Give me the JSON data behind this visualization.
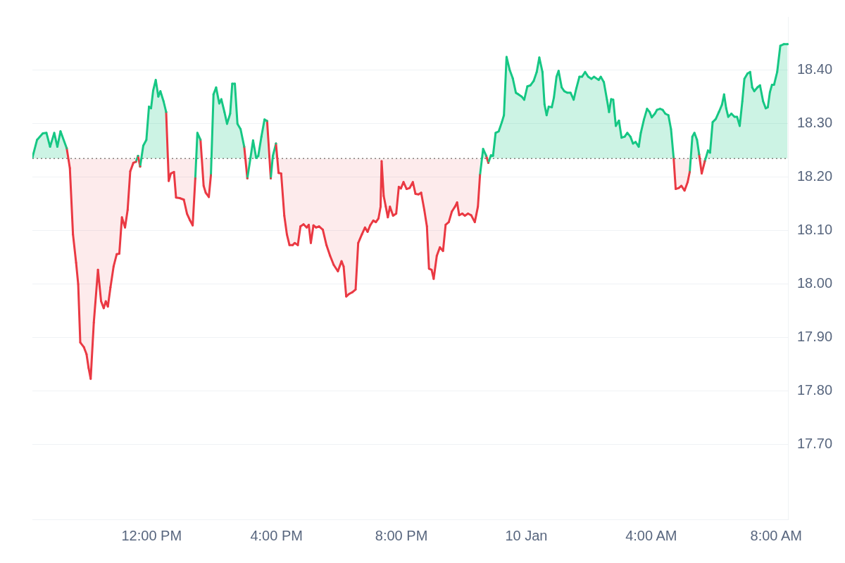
{
  "chart_data": {
    "type": "area",
    "xlim": [
      "--01-09T08:11",
      "--01-10T08:24"
    ],
    "ylim": [
      17.56,
      18.5
    ],
    "xticks": [
      {
        "value": "--01-09T12:00",
        "label": "12:00 PM"
      },
      {
        "value": "--01-09T16:00",
        "label": "4:00 PM"
      },
      {
        "value": "--01-09T20:00",
        "label": "8:00 PM"
      },
      {
        "value": "--01-10T00:00",
        "label": "10 Jan"
      },
      {
        "value": "--01-10T04:00",
        "label": "4:00 AM"
      },
      {
        "value": "--01-10T08:00",
        "label": "8:00 AM"
      }
    ],
    "yticks": [
      {
        "value": 17.7,
        "label": "17.70"
      },
      {
        "value": 17.8,
        "label": "17.80"
      },
      {
        "value": 17.9,
        "label": "17.90"
      },
      {
        "value": 18.0,
        "label": "18.00"
      },
      {
        "value": 18.1,
        "label": "18.10"
      },
      {
        "value": 18.2,
        "label": "18.20"
      },
      {
        "value": 18.3,
        "label": "18.30"
      },
      {
        "value": 18.4,
        "label": "18.40"
      }
    ],
    "grid": "y",
    "legend": false,
    "marker": "none",
    "line_style": "solid",
    "ref_lines": [
      {
        "axis": "y",
        "value": 18.235,
        "line_style": "dotted",
        "color": "#8a7f7f"
      }
    ],
    "series": [
      {
        "color": "#16c784",
        "x": [
          "--01-09T08:11",
          "--01-09T08:20",
          "--01-09T08:31",
          "--01-09T08:38",
          "--01-09T08:45",
          "--01-09T08:53",
          "--01-09T08:59",
          "--01-09T09:05",
          "--01-09T09:17",
          "--01-09T09:23",
          "--01-09T09:29",
          "--01-09T09:35",
          "--01-09T09:39",
          "--01-09T09:43",
          "--01-09T09:50",
          "--01-09T09:55",
          "--01-09T09:59",
          "--01-09T10:03",
          "--01-09T10:09",
          "--01-09T10:17",
          "--01-09T10:23",
          "--01-09T10:28",
          "--01-09T10:32",
          "--01-09T10:36",
          "--01-09T10:41",
          "--01-09T10:47",
          "--01-09T10:53",
          "--01-09T10:58",
          "--01-09T11:03",
          "--01-09T11:09",
          "--01-09T11:14",
          "--01-09T11:19",
          "--01-09T11:25",
          "--01-09T11:30",
          "--01-09T11:34",
          "--01-09T11:38",
          "--01-09T11:44",
          "--01-09T11:50",
          "--01-09T11:55",
          "--01-09T11:59",
          "--01-09T12:03",
          "--01-09T12:08",
          "--01-09T12:13",
          "--01-09T12:17",
          "--01-09T12:23",
          "--01-09T12:28",
          "--01-09T12:33",
          "--01-09T12:37",
          "--01-09T12:43",
          "--01-09T12:47",
          "--01-09T12:54",
          "--01-09T13:02",
          "--01-09T13:08",
          "--01-09T13:14",
          "--01-09T13:19",
          "--01-09T13:24",
          "--01-09T13:28",
          "--01-09T13:34",
          "--01-09T13:40",
          "--01-09T13:44",
          "--01-09T13:50",
          "--01-09T13:54",
          "--01-09T13:59",
          "--01-09T14:04",
          "--01-09T14:10",
          "--01-09T14:14",
          "--01-09T14:20",
          "--01-09T14:25",
          "--01-09T14:31",
          "--01-09T14:35",
          "--01-09T14:40",
          "--01-09T14:45",
          "--01-09T14:51",
          "--01-09T14:58",
          "--01-09T15:04",
          "--01-09T15:10",
          "--01-09T15:15",
          "--01-09T15:21",
          "--01-09T15:25",
          "--01-09T15:31",
          "--01-09T15:37",
          "--01-09T15:42",
          "--01-09T15:49",
          "--01-09T15:53",
          "--01-09T15:59",
          "--01-09T16:04",
          "--01-09T16:09",
          "--01-09T16:15",
          "--01-09T16:20",
          "--01-09T16:25",
          "--01-09T16:31",
          "--01-09T16:35",
          "--01-09T16:41",
          "--01-09T16:46",
          "--01-09T16:52",
          "--01-09T16:58",
          "--01-09T17:02",
          "--01-09T17:06",
          "--01-09T17:11",
          "--01-09T17:16",
          "--01-09T17:22",
          "--01-09T17:29",
          "--01-09T17:36",
          "--01-09T17:43",
          "--01-09T17:50",
          "--01-09T17:58",
          "--01-09T18:05",
          "--01-09T18:09",
          "--01-09T18:14",
          "--01-09T18:20",
          "--01-09T18:26",
          "--01-09T18:32",
          "--01-09T18:37",
          "--01-09T18:44",
          "--01-09T18:50",
          "--01-09T18:55",
          "--01-09T19:00",
          "--01-09T19:06",
          "--01-09T19:11",
          "--01-09T19:16",
          "--01-09T19:20",
          "--01-09T19:22",
          "--01-09T19:26",
          "--01-09T19:30",
          "--01-09T19:34",
          "--01-09T19:38",
          "--01-09T19:44",
          "--01-09T19:50",
          "--01-09T19:55",
          "--01-09T19:59",
          "--01-09T20:04",
          "--01-09T20:10",
          "--01-09T20:16",
          "--01-09T20:22",
          "--01-09T20:27",
          "--01-09T20:33",
          "--01-09T20:38",
          "--01-09T20:44",
          "--01-09T20:49",
          "--01-09T20:53",
          "--01-09T20:58",
          "--01-09T21:02",
          "--01-09T21:08",
          "--01-09T21:14",
          "--01-09T21:20",
          "--01-09T21:25",
          "--01-09T21:31",
          "--01-09T21:37",
          "--01-09T21:43",
          "--01-09T21:47",
          "--01-09T21:51",
          "--01-09T21:57",
          "--01-09T22:02",
          "--01-09T22:08",
          "--01-09T22:14",
          "--01-09T22:21",
          "--01-09T22:27",
          "--01-09T22:31",
          "--01-09T22:37",
          "--01-09T22:43",
          "--01-09T22:47",
          "--01-09T22:52",
          "--01-09T22:56",
          "--01-09T23:01",
          "--01-09T23:07",
          "--01-09T23:13",
          "--01-09T23:17",
          "--01-09T23:22",
          "--01-09T23:28",
          "--01-09T23:34",
          "--01-09T23:40",
          "--01-09T23:45",
          "--01-09T23:51",
          "--01-09T23:56",
          "--01-10T00:02",
          "--01-10T00:08",
          "--01-10T00:14",
          "--01-10T00:20",
          "--01-10T00:25",
          "--01-10T00:31",
          "--01-10T00:35",
          "--01-10T00:39",
          "--01-10T00:43",
          "--01-10T00:49",
          "--01-10T00:53",
          "--01-10T00:58",
          "--01-10T01:02",
          "--01-10T01:08",
          "--01-10T01:13",
          "--01-10T01:19",
          "--01-10T01:25",
          "--01-10T01:31",
          "--01-10T01:36",
          "--01-10T01:42",
          "--01-10T01:47",
          "--01-10T01:53",
          "--01-10T01:59",
          "--01-10T02:05",
          "--01-10T02:10",
          "--01-10T02:19",
          "--01-10T02:23",
          "--01-10T02:29",
          "--01-10T02:35",
          "--01-10T02:39",
          "--01-10T02:43",
          "--01-10T02:47",
          "--01-10T02:52",
          "--01-10T02:58",
          "--01-10T03:03",
          "--01-10T03:09",
          "--01-10T03:14",
          "--01-10T03:20",
          "--01-10T03:25",
          "--01-10T03:30",
          "--01-10T03:36",
          "--01-10T03:40",
          "--01-10T03:46",
          "--01-10T03:52",
          "--01-10T03:57",
          "--01-10T04:01",
          "--01-10T04:07",
          "--01-10T04:11",
          "--01-10T04:17",
          "--01-10T04:22",
          "--01-10T04:27",
          "--01-10T04:33",
          "--01-10T04:38",
          "--01-10T04:43",
          "--01-10T04:47",
          "--01-10T04:53",
          "--01-10T04:58",
          "--01-10T05:04",
          "--01-10T05:10",
          "--01-10T05:14",
          "--01-10T05:19",
          "--01-10T05:23",
          "--01-10T05:28",
          "--01-10T05:32",
          "--01-10T05:37",
          "--01-10T05:43",
          "--01-10T05:49",
          "--01-10T05:53",
          "--01-10T05:58",
          "--01-10T06:04",
          "--01-10T06:10",
          "--01-10T06:16",
          "--01-10T06:20",
          "--01-10T06:24",
          "--01-10T06:28",
          "--01-10T06:34",
          "--01-10T06:40",
          "--01-10T06:45",
          "--01-10T06:50",
          "--01-10T06:55",
          "--01-10T06:59",
          "--01-10T07:05",
          "--01-10T07:10",
          "--01-10T07:14",
          "--01-10T07:18",
          "--01-10T07:24",
          "--01-10T07:29",
          "--01-10T07:35",
          "--01-10T07:40",
          "--01-10T07:44",
          "--01-10T07:48",
          "--01-10T07:52",
          "--01-10T07:56",
          "--01-10T08:02",
          "--01-10T08:08",
          "--01-10T08:15",
          "--01-10T08:22"
        ],
        "values": [
          18.237,
          18.27,
          18.282,
          18.283,
          18.257,
          18.283,
          18.257,
          18.286,
          18.254,
          18.217,
          18.093,
          18.04,
          18.0,
          17.891,
          17.882,
          17.869,
          17.843,
          17.823,
          17.928,
          18.027,
          17.968,
          17.955,
          17.968,
          17.958,
          17.994,
          18.033,
          18.056,
          18.057,
          18.125,
          18.106,
          18.139,
          18.211,
          18.227,
          18.229,
          18.24,
          18.22,
          18.259,
          18.27,
          18.332,
          18.329,
          18.362,
          18.382,
          18.351,
          18.361,
          18.342,
          18.322,
          18.193,
          18.207,
          18.21,
          18.162,
          18.161,
          18.158,
          18.132,
          18.119,
          18.11,
          18.198,
          18.283,
          18.27,
          18.184,
          18.171,
          18.163,
          18.204,
          18.355,
          18.368,
          18.338,
          18.346,
          18.322,
          18.3,
          18.319,
          18.375,
          18.375,
          18.3,
          18.29,
          18.257,
          18.198,
          18.236,
          18.269,
          18.236,
          18.24,
          18.276,
          18.308,
          18.305,
          18.198,
          18.24,
          18.263,
          18.208,
          18.207,
          18.128,
          18.093,
          18.073,
          18.073,
          18.077,
          18.073,
          18.108,
          18.112,
          18.106,
          18.111,
          18.077,
          18.11,
          18.106,
          18.108,
          18.102,
          18.073,
          18.053,
          18.036,
          18.024,
          18.043,
          18.033,
          17.977,
          17.982,
          17.985,
          17.99,
          18.077,
          18.093,
          18.106,
          18.098,
          18.11,
          18.119,
          18.116,
          18.123,
          18.145,
          18.23,
          18.165,
          18.145,
          18.125,
          18.145,
          18.128,
          18.132,
          18.182,
          18.179,
          18.191,
          18.178,
          18.18,
          18.191,
          18.169,
          18.168,
          18.171,
          18.139,
          18.108,
          18.029,
          18.027,
          18.01,
          18.053,
          18.069,
          18.062,
          18.111,
          18.116,
          18.136,
          18.145,
          18.153,
          18.129,
          18.132,
          18.128,
          18.132,
          18.129,
          18.116,
          18.145,
          18.204,
          18.253,
          18.24,
          18.227,
          18.241,
          18.24,
          18.283,
          18.286,
          18.303,
          18.316,
          18.425,
          18.401,
          18.385,
          18.358,
          18.355,
          18.351,
          18.345,
          18.37,
          18.372,
          18.38,
          18.397,
          18.424,
          18.397,
          18.336,
          18.316,
          18.332,
          18.331,
          18.349,
          18.388,
          18.399,
          18.368,
          18.361,
          18.358,
          18.358,
          18.345,
          18.366,
          18.388,
          18.388,
          18.397,
          18.388,
          18.384,
          18.388,
          18.382,
          18.388,
          18.378,
          18.345,
          18.322,
          18.346,
          18.345,
          18.296,
          18.306,
          18.274,
          18.276,
          18.283,
          18.276,
          18.263,
          18.266,
          18.257,
          18.283,
          18.308,
          18.328,
          18.322,
          18.312,
          18.319,
          18.326,
          18.328,
          18.326,
          18.319,
          18.316,
          18.29,
          18.237,
          18.178,
          18.18,
          18.184,
          18.175,
          18.191,
          18.21,
          18.276,
          18.283,
          18.27,
          18.243,
          18.207,
          18.23,
          18.25,
          18.246,
          18.303,
          18.309,
          18.322,
          18.336,
          18.355,
          18.329,
          18.313,
          18.319,
          18.313,
          18.313,
          18.296,
          18.342,
          18.384,
          18.394,
          18.397,
          18.368,
          18.361,
          18.368,
          18.372,
          18.342,
          18.329,
          18.331,
          18.359,
          18.373,
          18.373,
          18.397,
          18.446,
          18.449,
          18.449
        ],
        "colors": [
          "#16c784",
          "#16c784",
          "#16c784",
          "#16c784",
          "#16c784",
          "#16c784",
          "#16c784",
          "#16c784",
          "#16c784",
          "#ea3943",
          "#ea3943",
          "#ea3943",
          "#ea3943",
          "#ea3943",
          "#ea3943",
          "#ea3943",
          "#ea3943",
          "#ea3943",
          "#ea3943",
          "#ea3943",
          "#ea3943",
          "#ea3943",
          "#ea3943",
          "#ea3943",
          "#ea3943",
          "#ea3943",
          "#ea3943",
          "#ea3943",
          "#ea3943",
          "#ea3943",
          "#ea3943",
          "#ea3943",
          "#ea3943",
          "#ea3943",
          "#16c784",
          "#ea3943",
          "#16c784",
          "#16c784",
          "#16c784",
          "#16c784",
          "#16c784",
          "#16c784",
          "#16c784",
          "#16c784",
          "#16c784",
          "#16c784",
          "#ea3943",
          "#ea3943",
          "#ea3943",
          "#ea3943",
          "#ea3943",
          "#ea3943",
          "#ea3943",
          "#ea3943",
          "#ea3943",
          "#ea3943",
          "#16c784",
          "#16c784",
          "#ea3943",
          "#ea3943",
          "#ea3943",
          "#ea3943",
          "#16c784",
          "#16c784",
          "#16c784",
          "#16c784",
          "#16c784",
          "#16c784",
          "#16c784",
          "#16c784",
          "#16c784",
          "#16c784",
          "#16c784",
          "#16c784",
          "#ea3943",
          "#16c784",
          "#16c784",
          "#16c784",
          "#16c784",
          "#16c784",
          "#16c784",
          "#16c784",
          "#ea3943",
          "#16c784",
          "#16c784",
          "#ea3943",
          "#ea3943",
          "#ea3943",
          "#ea3943",
          "#ea3943",
          "#ea3943",
          "#ea3943",
          "#ea3943",
          "#ea3943",
          "#ea3943",
          "#ea3943",
          "#ea3943",
          "#ea3943",
          "#ea3943",
          "#ea3943",
          "#ea3943",
          "#ea3943",
          "#ea3943",
          "#ea3943",
          "#ea3943",
          "#ea3943",
          "#ea3943",
          "#ea3943",
          "#ea3943",
          "#ea3943",
          "#ea3943",
          "#ea3943",
          "#ea3943",
          "#ea3943",
          "#ea3943",
          "#ea3943",
          "#ea3943",
          "#ea3943",
          "#ea3943",
          "#ea3943",
          "#ea3943",
          "#ea3943",
          "#ea3943",
          "#ea3943",
          "#ea3943",
          "#ea3943",
          "#ea3943",
          "#ea3943",
          "#ea3943",
          "#ea3943",
          "#ea3943",
          "#ea3943",
          "#ea3943",
          "#ea3943",
          "#ea3943",
          "#ea3943",
          "#ea3943",
          "#ea3943",
          "#ea3943",
          "#ea3943",
          "#ea3943",
          "#ea3943",
          "#ea3943",
          "#ea3943",
          "#ea3943",
          "#ea3943",
          "#ea3943",
          "#ea3943",
          "#ea3943",
          "#ea3943",
          "#ea3943",
          "#ea3943",
          "#ea3943",
          "#ea3943",
          "#ea3943",
          "#ea3943",
          "#ea3943",
          "#ea3943",
          "#16c784",
          "#16c784",
          "#ea3943",
          "#16c784",
          "#16c784",
          "#16c784",
          "#16c784",
          "#16c784",
          "#16c784",
          "#16c784",
          "#16c784",
          "#16c784",
          "#16c784",
          "#16c784",
          "#16c784",
          "#16c784",
          "#16c784",
          "#16c784",
          "#16c784",
          "#16c784",
          "#16c784",
          "#16c784",
          "#16c784",
          "#16c784",
          "#16c784",
          "#16c784",
          "#16c784",
          "#16c784",
          "#16c784",
          "#16c784",
          "#16c784",
          "#16c784",
          "#16c784",
          "#16c784",
          "#16c784",
          "#16c784",
          "#16c784",
          "#16c784",
          "#16c784",
          "#16c784",
          "#16c784",
          "#16c784",
          "#16c784",
          "#16c784",
          "#16c784",
          "#16c784",
          "#16c784",
          "#16c784",
          "#16c784",
          "#16c784",
          "#16c784",
          "#16c784",
          "#16c784",
          "#16c784",
          "#16c784",
          "#16c784",
          "#16c784",
          "#16c784",
          "#16c784",
          "#16c784",
          "#16c784",
          "#16c784",
          "#16c784",
          "#16c784",
          "#16c784",
          "#16c784",
          "#16c784",
          "#16c784",
          "#16c784",
          "#16c784",
          "#ea3943",
          "#ea3943",
          "#ea3943",
          "#ea3943",
          "#ea3943",
          "#ea3943",
          "#16c784",
          "#16c784",
          "#16c784",
          "#16c784",
          "#ea3943",
          "#ea3943",
          "#16c784",
          "#16c784",
          "#16c784",
          "#16c784",
          "#16c784",
          "#16c784",
          "#16c784",
          "#16c784",
          "#16c784",
          "#16c784",
          "#16c784",
          "#16c784",
          "#16c784",
          "#16c784",
          "#16c784",
          "#16c784",
          "#16c784",
          "#16c784",
          "#16c784",
          "#16c784",
          "#16c784",
          "#16c784",
          "#16c784",
          "#16c784",
          "#16c784",
          "#16c784",
          "#16c784",
          "#16c784",
          "#16c784",
          "#16c784",
          "#16c784"
        ]
      }
    ]
  }
}
